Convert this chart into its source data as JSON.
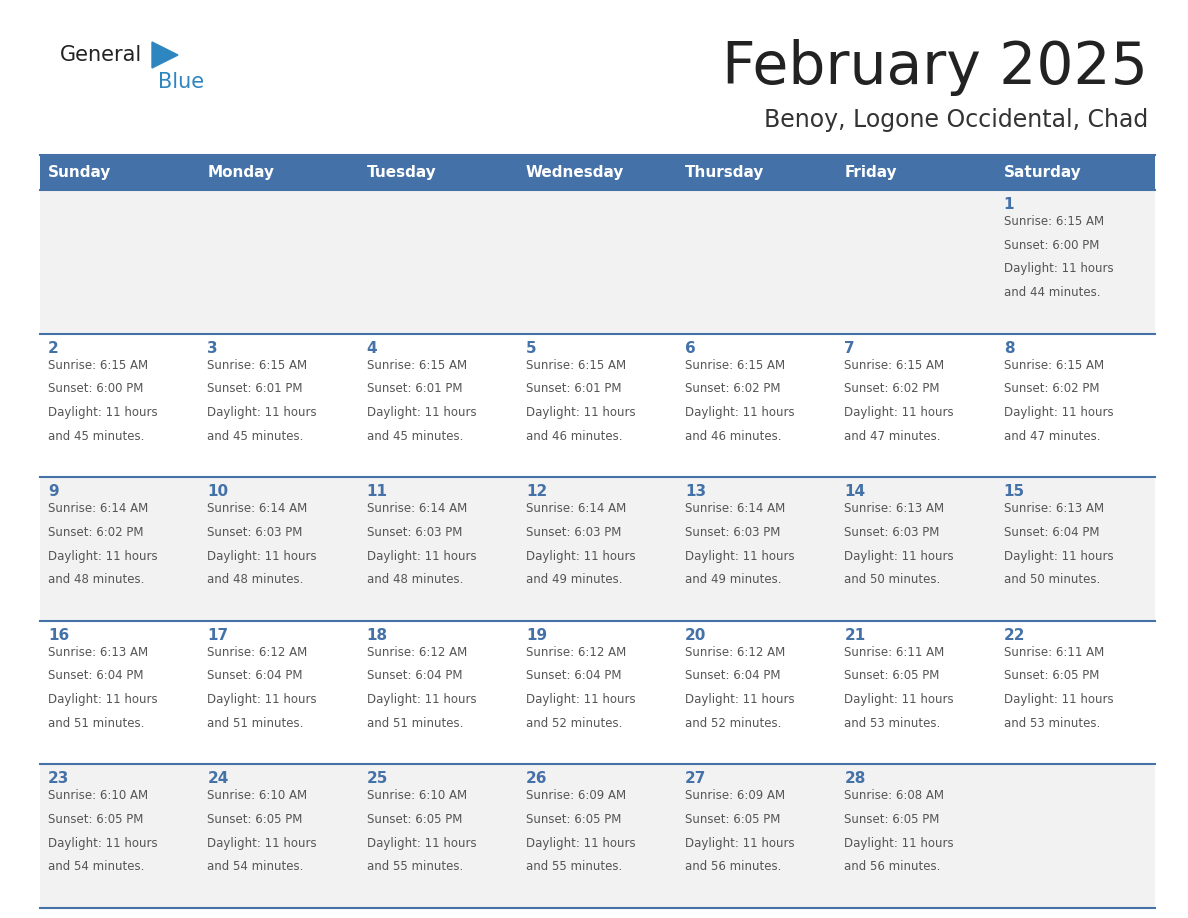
{
  "title": "February 2025",
  "subtitle": "Benoy, Logone Occidental, Chad",
  "days_of_week": [
    "Sunday",
    "Monday",
    "Tuesday",
    "Wednesday",
    "Thursday",
    "Friday",
    "Saturday"
  ],
  "header_bg": "#4472A8",
  "header_text": "#FFFFFF",
  "row0_bg": "#F2F2F2",
  "row1_bg": "#FFFFFF",
  "row2_bg": "#F2F2F2",
  "row3_bg": "#FFFFFF",
  "row4_bg": "#F2F2F2",
  "line_color": "#4472A8",
  "day_number_color": "#4472A8",
  "text_color": "#555555",
  "title_color": "#222222",
  "subtitle_color": "#333333",
  "logo_general_color": "#222222",
  "logo_blue_color": "#2E86C1",
  "calendar_data": [
    {
      "day": 1,
      "col": 6,
      "row": 0,
      "sunrise": "6:15 AM",
      "sunset": "6:00 PM",
      "daylight": "11 hours and 44 minutes."
    },
    {
      "day": 2,
      "col": 0,
      "row": 1,
      "sunrise": "6:15 AM",
      "sunset": "6:00 PM",
      "daylight": "11 hours and 45 minutes."
    },
    {
      "day": 3,
      "col": 1,
      "row": 1,
      "sunrise": "6:15 AM",
      "sunset": "6:01 PM",
      "daylight": "11 hours and 45 minutes."
    },
    {
      "day": 4,
      "col": 2,
      "row": 1,
      "sunrise": "6:15 AM",
      "sunset": "6:01 PM",
      "daylight": "11 hours and 45 minutes."
    },
    {
      "day": 5,
      "col": 3,
      "row": 1,
      "sunrise": "6:15 AM",
      "sunset": "6:01 PM",
      "daylight": "11 hours and 46 minutes."
    },
    {
      "day": 6,
      "col": 4,
      "row": 1,
      "sunrise": "6:15 AM",
      "sunset": "6:02 PM",
      "daylight": "11 hours and 46 minutes."
    },
    {
      "day": 7,
      "col": 5,
      "row": 1,
      "sunrise": "6:15 AM",
      "sunset": "6:02 PM",
      "daylight": "11 hours and 47 minutes."
    },
    {
      "day": 8,
      "col": 6,
      "row": 1,
      "sunrise": "6:15 AM",
      "sunset": "6:02 PM",
      "daylight": "11 hours and 47 minutes."
    },
    {
      "day": 9,
      "col": 0,
      "row": 2,
      "sunrise": "6:14 AM",
      "sunset": "6:02 PM",
      "daylight": "11 hours and 48 minutes."
    },
    {
      "day": 10,
      "col": 1,
      "row": 2,
      "sunrise": "6:14 AM",
      "sunset": "6:03 PM",
      "daylight": "11 hours and 48 minutes."
    },
    {
      "day": 11,
      "col": 2,
      "row": 2,
      "sunrise": "6:14 AM",
      "sunset": "6:03 PM",
      "daylight": "11 hours and 48 minutes."
    },
    {
      "day": 12,
      "col": 3,
      "row": 2,
      "sunrise": "6:14 AM",
      "sunset": "6:03 PM",
      "daylight": "11 hours and 49 minutes."
    },
    {
      "day": 13,
      "col": 4,
      "row": 2,
      "sunrise": "6:14 AM",
      "sunset": "6:03 PM",
      "daylight": "11 hours and 49 minutes."
    },
    {
      "day": 14,
      "col": 5,
      "row": 2,
      "sunrise": "6:13 AM",
      "sunset": "6:03 PM",
      "daylight": "11 hours and 50 minutes."
    },
    {
      "day": 15,
      "col": 6,
      "row": 2,
      "sunrise": "6:13 AM",
      "sunset": "6:04 PM",
      "daylight": "11 hours and 50 minutes."
    },
    {
      "day": 16,
      "col": 0,
      "row": 3,
      "sunrise": "6:13 AM",
      "sunset": "6:04 PM",
      "daylight": "11 hours and 51 minutes."
    },
    {
      "day": 17,
      "col": 1,
      "row": 3,
      "sunrise": "6:12 AM",
      "sunset": "6:04 PM",
      "daylight": "11 hours and 51 minutes."
    },
    {
      "day": 18,
      "col": 2,
      "row": 3,
      "sunrise": "6:12 AM",
      "sunset": "6:04 PM",
      "daylight": "11 hours and 51 minutes."
    },
    {
      "day": 19,
      "col": 3,
      "row": 3,
      "sunrise": "6:12 AM",
      "sunset": "6:04 PM",
      "daylight": "11 hours and 52 minutes."
    },
    {
      "day": 20,
      "col": 4,
      "row": 3,
      "sunrise": "6:12 AM",
      "sunset": "6:04 PM",
      "daylight": "11 hours and 52 minutes."
    },
    {
      "day": 21,
      "col": 5,
      "row": 3,
      "sunrise": "6:11 AM",
      "sunset": "6:05 PM",
      "daylight": "11 hours and 53 minutes."
    },
    {
      "day": 22,
      "col": 6,
      "row": 3,
      "sunrise": "6:11 AM",
      "sunset": "6:05 PM",
      "daylight": "11 hours and 53 minutes."
    },
    {
      "day": 23,
      "col": 0,
      "row": 4,
      "sunrise": "6:10 AM",
      "sunset": "6:05 PM",
      "daylight": "11 hours and 54 minutes."
    },
    {
      "day": 24,
      "col": 1,
      "row": 4,
      "sunrise": "6:10 AM",
      "sunset": "6:05 PM",
      "daylight": "11 hours and 54 minutes."
    },
    {
      "day": 25,
      "col": 2,
      "row": 4,
      "sunrise": "6:10 AM",
      "sunset": "6:05 PM",
      "daylight": "11 hours and 55 minutes."
    },
    {
      "day": 26,
      "col": 3,
      "row": 4,
      "sunrise": "6:09 AM",
      "sunset": "6:05 PM",
      "daylight": "11 hours and 55 minutes."
    },
    {
      "day": 27,
      "col": 4,
      "row": 4,
      "sunrise": "6:09 AM",
      "sunset": "6:05 PM",
      "daylight": "11 hours and 56 minutes."
    },
    {
      "day": 28,
      "col": 5,
      "row": 4,
      "sunrise": "6:08 AM",
      "sunset": "6:05 PM",
      "daylight": "11 hours and 56 minutes."
    }
  ]
}
